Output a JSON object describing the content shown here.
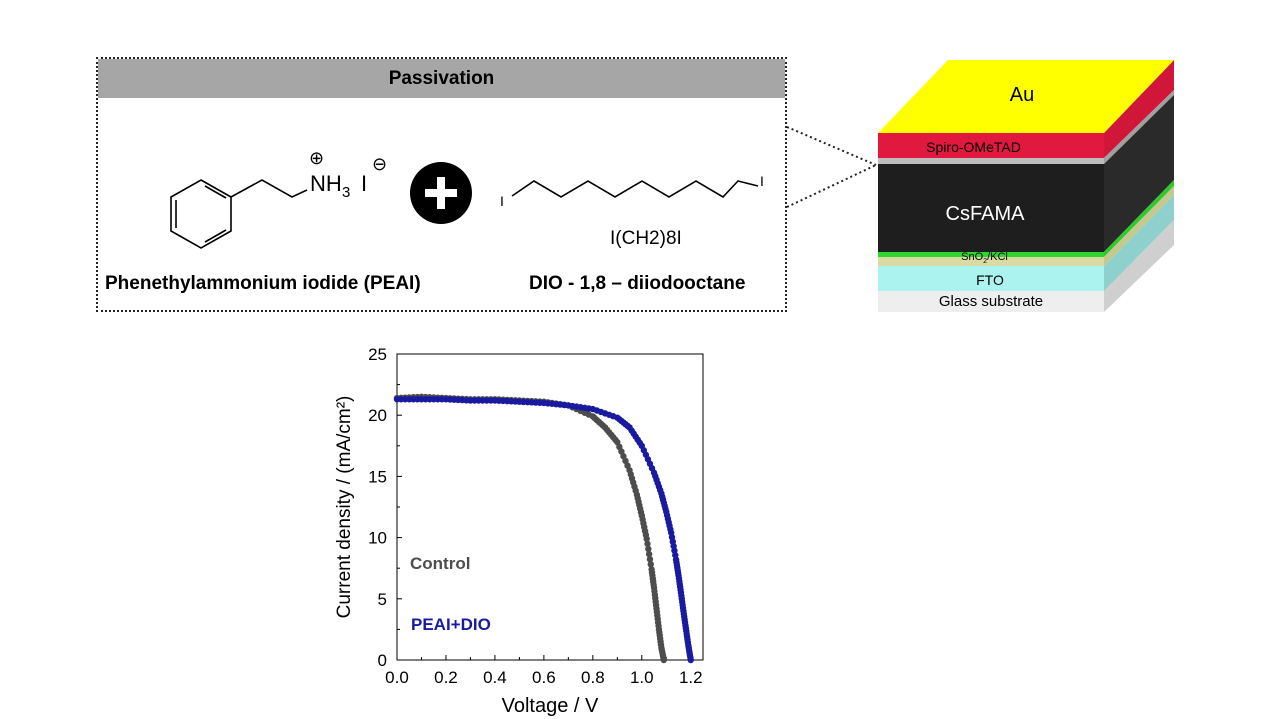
{
  "passivation": {
    "header": "Passivation",
    "peai": {
      "cation": "NH",
      "cation_sub": "3",
      "anion": "I",
      "plus_sign": "⊕",
      "minus_sign": "⊖",
      "name": "Phenethylammonium iodide (PEAI)"
    },
    "dio": {
      "end_label_left": "I",
      "end_label_right": "I",
      "formula": "I(CH2)8I",
      "name": "DIO - 1,8 – diiodooctane"
    }
  },
  "device": {
    "layers": [
      {
        "id": "au",
        "label": "Au",
        "color": "#ffff00"
      },
      {
        "id": "spiro",
        "label": "Spiro-OMeTAD",
        "color": "#e2193f"
      },
      {
        "id": "csfama",
        "label": "CsFAMA",
        "color": "#1e1e1e"
      },
      {
        "id": "sno2",
        "label": "SnO2/KCl",
        "color": "#2fd62f"
      },
      {
        "id": "fto",
        "label": "FTO",
        "color": "#aaf3ee"
      },
      {
        "id": "glass",
        "label": "Glass substrate",
        "color": "#eeeeee"
      }
    ],
    "sno2_parts": {
      "main": "SnO",
      "sub": "2",
      "rest": "/KCl"
    }
  },
  "chart_data": {
    "type": "line",
    "xlabel": "Voltage / V",
    "ylabel": "Current density / (mA/cm²)",
    "xlim": [
      0.0,
      1.25
    ],
    "ylim": [
      0,
      25
    ],
    "xticks": [
      "0.0",
      "0.2",
      "0.4",
      "0.6",
      "0.8",
      "1.0",
      "1.2"
    ],
    "yticks": [
      "0",
      "5",
      "10",
      "15",
      "20",
      "25"
    ],
    "series": [
      {
        "name": "Control",
        "color": "#4d4d4d",
        "x": [
          0.0,
          0.1,
          0.2,
          0.3,
          0.4,
          0.5,
          0.6,
          0.7,
          0.8,
          0.85,
          0.9,
          0.95,
          0.98,
          1.0,
          1.02,
          1.04,
          1.05,
          1.06,
          1.07,
          1.08,
          1.09
        ],
        "y": [
          21.4,
          21.5,
          21.4,
          21.3,
          21.3,
          21.2,
          21.1,
          20.8,
          19.9,
          19.0,
          17.8,
          15.5,
          13.5,
          11.8,
          9.9,
          7.4,
          5.9,
          4.2,
          2.5,
          1.0,
          0.0
        ]
      },
      {
        "name": "PEAI+DIO",
        "color": "#1a1aa0",
        "x": [
          0.0,
          0.1,
          0.2,
          0.3,
          0.4,
          0.5,
          0.6,
          0.7,
          0.8,
          0.9,
          0.95,
          1.0,
          1.05,
          1.08,
          1.1,
          1.12,
          1.14,
          1.15,
          1.16,
          1.17,
          1.18,
          1.19,
          1.2
        ],
        "y": [
          21.3,
          21.3,
          21.3,
          21.2,
          21.2,
          21.1,
          21.0,
          20.8,
          20.5,
          19.8,
          19.0,
          17.5,
          15.3,
          13.6,
          12.1,
          10.4,
          8.2,
          6.9,
          5.5,
          4.0,
          2.6,
          1.2,
          0.0
        ]
      }
    ]
  }
}
